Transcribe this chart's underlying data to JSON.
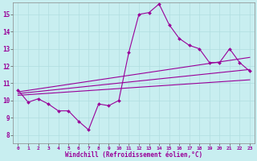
{
  "xlabel": "Windchill (Refroidissement éolien,°C)",
  "background_color": "#c8eef0",
  "line_color": "#990099",
  "xlim": [
    -0.5,
    23.5
  ],
  "ylim": [
    7.5,
    15.7
  ],
  "x_ticks": [
    0,
    1,
    2,
    3,
    4,
    5,
    6,
    7,
    8,
    9,
    10,
    11,
    12,
    13,
    14,
    15,
    16,
    17,
    18,
    19,
    20,
    21,
    22,
    23
  ],
  "y_ticks": [
    8,
    9,
    10,
    11,
    12,
    13,
    14,
    15
  ],
  "grid_color": "#b0dde0",
  "main_series": {
    "x": [
      0,
      1,
      2,
      3,
      4,
      5,
      6,
      7,
      8,
      9,
      10,
      11,
      12,
      13,
      14,
      15,
      16,
      17,
      18,
      19,
      20,
      21,
      22,
      23
    ],
    "y": [
      10.6,
      9.9,
      10.1,
      9.8,
      9.4,
      9.4,
      8.8,
      8.3,
      9.8,
      9.7,
      10.0,
      12.8,
      15.0,
      15.1,
      15.6,
      14.4,
      13.6,
      13.2,
      13.0,
      12.2,
      12.2,
      13.0,
      12.2,
      11.7
    ]
  },
  "trend_lines": [
    {
      "x": [
        0,
        23
      ],
      "y": [
        10.5,
        12.5
      ]
    },
    {
      "x": [
        0,
        23
      ],
      "y": [
        10.4,
        11.8
      ]
    },
    {
      "x": [
        0,
        23
      ],
      "y": [
        10.3,
        11.2
      ]
    }
  ]
}
